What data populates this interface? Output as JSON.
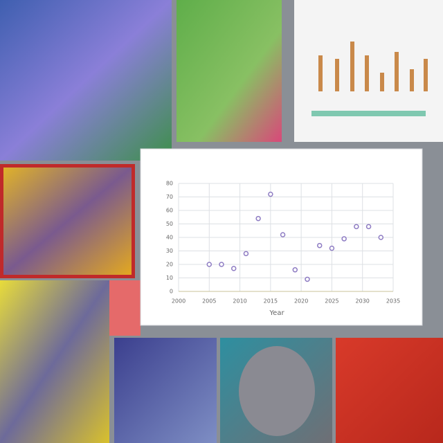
{
  "chart_data": {
    "type": "scatter",
    "x_label": "Year",
    "x": [
      2005,
      2007,
      2009,
      2011,
      2013,
      2015,
      2017,
      2019,
      2021,
      2023,
      2025,
      2027,
      2029,
      2031,
      2033
    ],
    "values": [
      20,
      20,
      17,
      28,
      54,
      72,
      42,
      16,
      9,
      34,
      32,
      39,
      48,
      48,
      40
    ],
    "color": "#8e7cc3",
    "xlim": [
      2000,
      2035
    ],
    "xticks": [
      2000,
      2005,
      2010,
      2015,
      2020,
      2025,
      2030,
      2035
    ],
    "ylim": [
      0,
      80
    ],
    "yticks": [
      0,
      10,
      20,
      30,
      40,
      50,
      60,
      70,
      80
    ],
    "grid": true
  }
}
